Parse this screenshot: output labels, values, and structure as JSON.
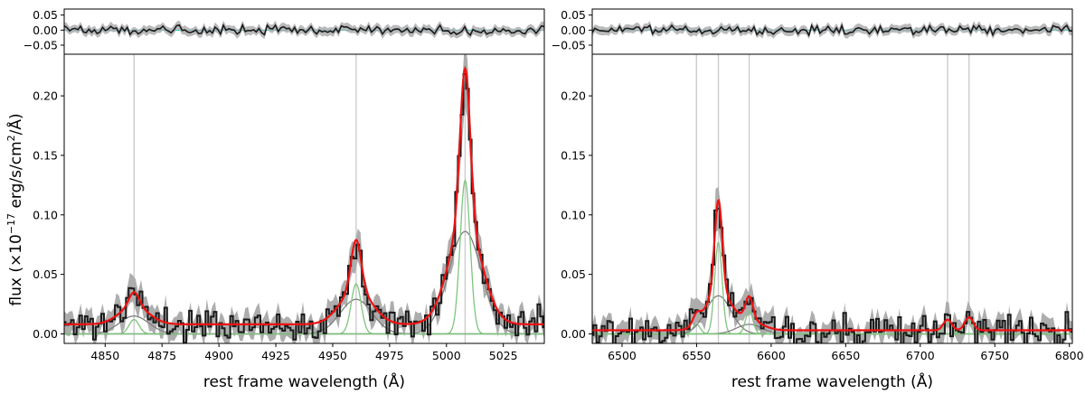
{
  "figure": {
    "ylabel": "flux (×10",
    "ylabel_exp": "−17",
    "ylabel_unit": " erg/s/cm",
    "ylabel_unit_exp": "2",
    "ylabel_tail": "/Å)"
  },
  "chart_data": [
    {
      "type": "line",
      "panel": "left",
      "xlabel": "rest frame wavelength (Å)",
      "xlim": [
        4832,
        5043
      ],
      "ylim": [
        -0.008,
        0.235
      ],
      "xticks": [
        4850,
        4875,
        4900,
        4925,
        4950,
        4975,
        5000,
        5025
      ],
      "yticks": [
        0.0,
        0.05,
        0.1,
        0.15,
        0.2
      ],
      "ytick_labels": [
        "0.00",
        "0.05",
        "0.10",
        "0.15",
        "0.20"
      ],
      "reference_lines": [
        4862.7,
        4960.3,
        5008.2
      ],
      "continuum": 0.008,
      "lines": [
        {
          "center": 4862.7,
          "narrow_amp": 0.012,
          "narrow_sigma": 2.2,
          "broad_amp": 0.015,
          "broad_sigma": 6.5
        },
        {
          "center": 4960.3,
          "narrow_amp": 0.042,
          "narrow_sigma": 2.2,
          "broad_amp": 0.029,
          "broad_sigma": 7.0
        },
        {
          "center": 5008.2,
          "narrow_amp": 0.129,
          "narrow_sigma": 2.2,
          "broad_amp": 0.086,
          "broad_sigma": 7.2
        }
      ],
      "residual": {
        "ylim": [
          -0.08,
          0.07
        ],
        "yticks": [
          0.05,
          0.0,
          -0.05
        ],
        "ytick_labels": [
          "0.05",
          "0.00",
          "−0.05"
        ]
      },
      "colors": {
        "data": "#1a1a1a",
        "error_band": "#a9a9a9",
        "model": "#ee1111",
        "narrow": "#7fc47f",
        "broad": "#808080",
        "reference": "#cccccc",
        "residual_band": "#8fc8c8"
      }
    },
    {
      "type": "line",
      "panel": "right",
      "xlabel": "rest frame wavelength (Å)",
      "xlim": [
        6480,
        6802
      ],
      "ylim": [
        -0.008,
        0.235
      ],
      "xticks": [
        6500,
        6550,
        6600,
        6650,
        6700,
        6750,
        6800
      ],
      "yticks": [
        0.0,
        0.05,
        0.1,
        0.15,
        0.2
      ],
      "ytick_labels": [
        "0.00",
        "0.05",
        "0.10",
        "0.15",
        "0.20"
      ],
      "reference_lines": [
        6549.9,
        6564.6,
        6585.3,
        6718.3,
        6732.7
      ],
      "continuum": 0.003,
      "lines": [
        {
          "center": 6549.9,
          "narrow_amp": 0.008,
          "narrow_sigma": 2.5,
          "broad_amp": 0.0,
          "broad_sigma": 5.0
        },
        {
          "center": 6564.6,
          "narrow_amp": 0.077,
          "narrow_sigma": 2.5,
          "broad_amp": 0.032,
          "broad_sigma": 8.5
        },
        {
          "center": 6585.3,
          "narrow_amp": 0.019,
          "narrow_sigma": 2.5,
          "broad_amp": 0.008,
          "broad_sigma": 8.5
        },
        {
          "center": 6718.3,
          "narrow_amp": 0.009,
          "narrow_sigma": 2.8,
          "broad_amp": 0.0,
          "broad_sigma": 5.0
        },
        {
          "center": 6732.7,
          "narrow_amp": 0.011,
          "narrow_sigma": 2.8,
          "broad_amp": 0.0,
          "broad_sigma": 5.0
        }
      ],
      "residual": {
        "ylim": [
          -0.08,
          0.07
        ],
        "yticks": [
          0.05,
          0.0,
          -0.05
        ],
        "ytick_labels": [
          "0.05",
          "0.00",
          "−0.05"
        ]
      },
      "colors": {
        "data": "#1a1a1a",
        "error_band": "#a9a9a9",
        "model": "#ee1111",
        "narrow": "#7fc47f",
        "broad": "#808080",
        "reference": "#cccccc",
        "residual_band": "#8fc8c8"
      }
    }
  ]
}
